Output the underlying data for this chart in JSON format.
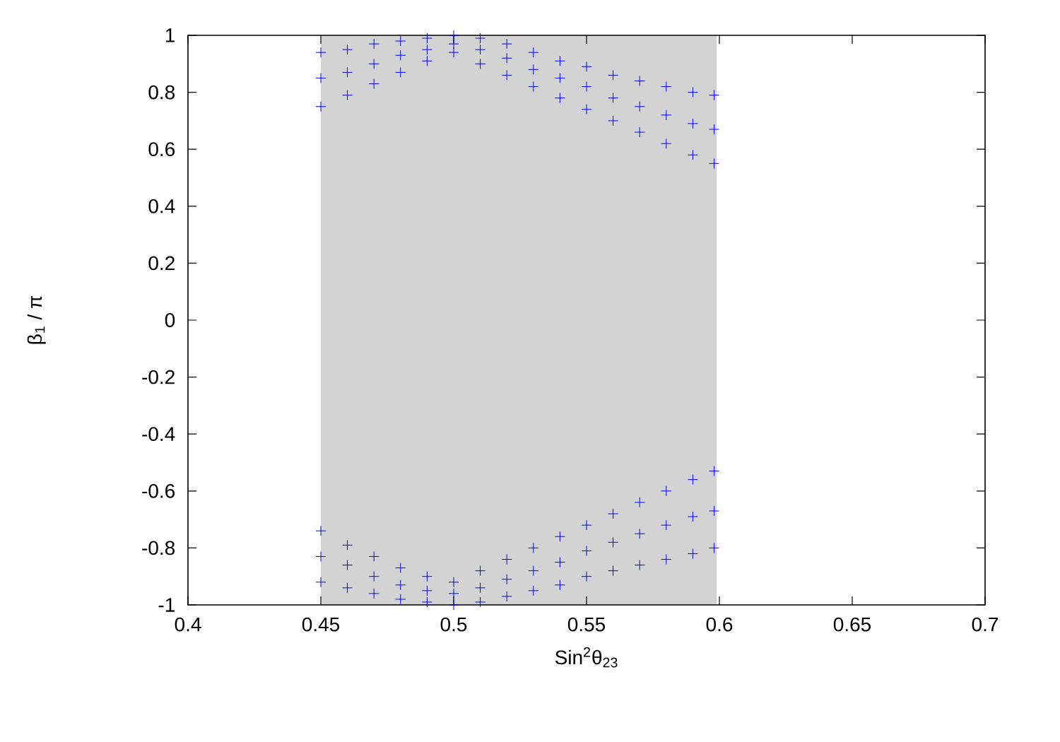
{
  "chart_data": {
    "type": "scatter",
    "xlabel": "Sin$^{2}$θ$_{23}$",
    "ylabel": "β$_{1}$ / π",
    "xlim": [
      0.4,
      0.7
    ],
    "xticks": [
      0.4,
      0.45,
      0.5,
      0.55,
      0.6,
      0.65,
      0.7
    ],
    "ylim": [
      -1,
      1
    ],
    "yticks": [
      -1,
      -0.8,
      -0.6,
      -0.4,
      -0.2,
      0,
      0.2,
      0.4,
      0.6,
      0.8,
      1
    ],
    "grid": false,
    "marker": "cross",
    "bands": [
      {
        "axis": "x",
        "from": 0.45,
        "to": 0.599,
        "color": "#d3d3d3"
      }
    ],
    "series": [
      {
        "color": "#0000ff",
        "x": [
          0.45,
          0.46,
          0.47,
          0.48,
          0.49,
          0.5,
          0.51,
          0.52,
          0.53,
          0.54,
          0.55,
          0.56,
          0.57,
          0.58,
          0.59,
          0.598,
          0.45,
          0.46,
          0.47,
          0.48,
          0.49,
          0.5,
          0.51,
          0.52,
          0.53,
          0.54,
          0.55,
          0.56,
          0.57,
          0.58,
          0.59,
          0.598,
          0.45,
          0.46,
          0.47,
          0.48,
          0.49,
          0.5,
          0.51,
          0.52,
          0.53,
          0.54,
          0.55,
          0.56,
          0.57,
          0.58,
          0.59,
          0.598,
          0.45,
          0.46,
          0.47,
          0.48,
          0.49,
          0.5,
          0.51,
          0.52,
          0.53,
          0.54,
          0.55,
          0.56,
          0.57,
          0.58,
          0.59,
          0.598,
          0.45,
          0.46,
          0.47,
          0.48,
          0.49,
          0.5,
          0.51,
          0.52,
          0.53,
          0.54,
          0.55,
          0.56,
          0.57,
          0.58,
          0.59,
          0.598,
          0.45,
          0.46,
          0.47,
          0.48,
          0.49,
          0.5,
          0.51,
          0.52,
          0.53,
          0.54,
          0.55,
          0.56,
          0.57,
          0.58,
          0.59,
          0.598
        ],
        "values": [
          0.94,
          0.95,
          0.97,
          0.98,
          0.99,
          1.0,
          0.99,
          0.97,
          0.94,
          0.91,
          0.89,
          0.86,
          0.84,
          0.82,
          0.8,
          0.79,
          0.75,
          0.79,
          0.83,
          0.87,
          0.91,
          0.94,
          0.9,
          0.86,
          0.82,
          0.78,
          0.74,
          0.7,
          0.66,
          0.62,
          0.58,
          0.55,
          0.85,
          0.87,
          0.9,
          0.93,
          0.95,
          0.97,
          0.95,
          0.92,
          0.88,
          0.85,
          0.82,
          0.78,
          0.75,
          0.72,
          0.69,
          0.67,
          -0.74,
          -0.79,
          -0.83,
          -0.87,
          -0.9,
          -0.92,
          -0.88,
          -0.84,
          -0.8,
          -0.76,
          -0.72,
          -0.68,
          -0.64,
          -0.6,
          -0.56,
          -0.53,
          -0.92,
          -0.94,
          -0.96,
          -0.98,
          -0.99,
          -1.0,
          -0.99,
          -0.97,
          -0.95,
          -0.93,
          -0.9,
          -0.88,
          -0.86,
          -0.84,
          -0.82,
          -0.8,
          -0.83,
          -0.86,
          -0.9,
          -0.93,
          -0.95,
          -0.96,
          -0.94,
          -0.91,
          -0.88,
          -0.85,
          -0.81,
          -0.78,
          -0.75,
          -0.72,
          -0.69,
          -0.67
        ]
      }
    ]
  }
}
